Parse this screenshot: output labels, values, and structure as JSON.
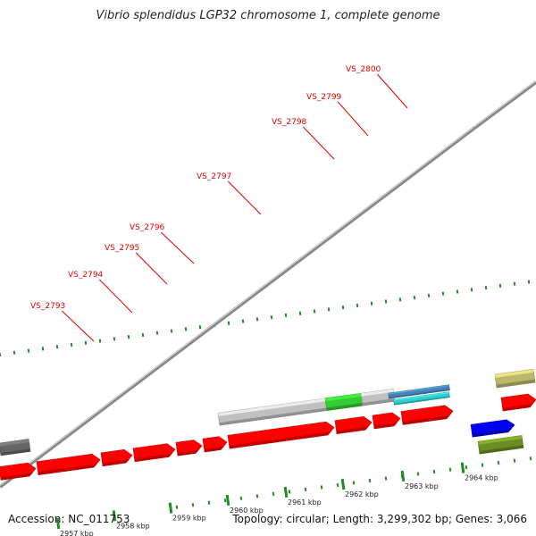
{
  "title": "Vibrio splendidus LGP32 chromosome 1, complete genome",
  "footer": {
    "accession": "Accession: NC_011753",
    "summary": "Topology: circular; Length: 3,299,302 bp; Genes: 3,066"
  },
  "colors": {
    "forward_strand": "#ff0000",
    "other_feature": "#c0c0c0",
    "green_feature": "#33cc33",
    "blue_feature": "#0000ee",
    "olive_feature": "#6b8e23",
    "khaki_feature": "#bdb76b",
    "dark_feature": "#666666",
    "cyan_feature": "#33cccc",
    "steelblue_feature": "#4682b4",
    "ruler_tick": "#228b22",
    "gene_label": "#dd0000",
    "backbone": "#888888"
  },
  "kbp_labels": [
    "2957 kbp",
    "2958 kbp",
    "2959 kbp",
    "2960 kbp",
    "2961 kbp",
    "2962 kbp",
    "2963 kbp",
    "2964 kbp"
  ],
  "gene_labels": [
    "VS_2793",
    "VS_2794",
    "VS_2795",
    "VS_2796",
    "VS_2797",
    "VS_2798",
    "VS_2799",
    "VS_2800"
  ]
}
